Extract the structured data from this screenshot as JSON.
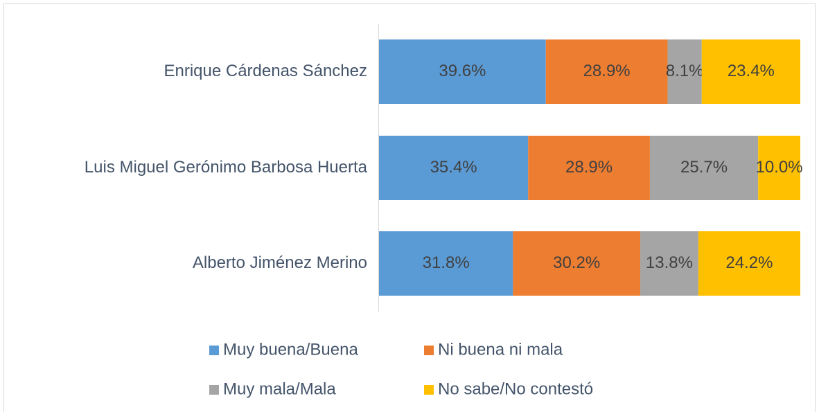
{
  "chart_data": {
    "type": "stacked_bar_horizontal",
    "categories": [
      "Enrique Cárdenas Sánchez",
      "Luis Miguel Gerónimo Barbosa Huerta",
      "Alberto Jiménez Merino"
    ],
    "series": [
      {
        "name": "Muy buena/Buena",
        "color": "#5b9bd5",
        "values": [
          39.6,
          35.4,
          31.8
        ],
        "value_labels": [
          "39.6%",
          "35.4%",
          "31.8%"
        ]
      },
      {
        "name": "Ni buena ni mala",
        "color": "#ed7d31",
        "values": [
          28.9,
          28.9,
          30.2
        ],
        "value_labels": [
          "28.9%",
          "28.9%",
          "30.2%"
        ]
      },
      {
        "name": "Muy mala/Mala",
        "color": "#a5a5a5",
        "values": [
          8.1,
          25.7,
          13.8
        ],
        "value_labels": [
          "8.1%",
          "25.7%",
          "13.8%"
        ]
      },
      {
        "name": "No sabe/No contestó",
        "color": "#ffc000",
        "values": [
          23.4,
          10,
          24.2
        ],
        "value_labels": [
          "23.4%",
          "10.0%",
          "24.2%"
        ]
      }
    ],
    "legend": "bottom"
  }
}
